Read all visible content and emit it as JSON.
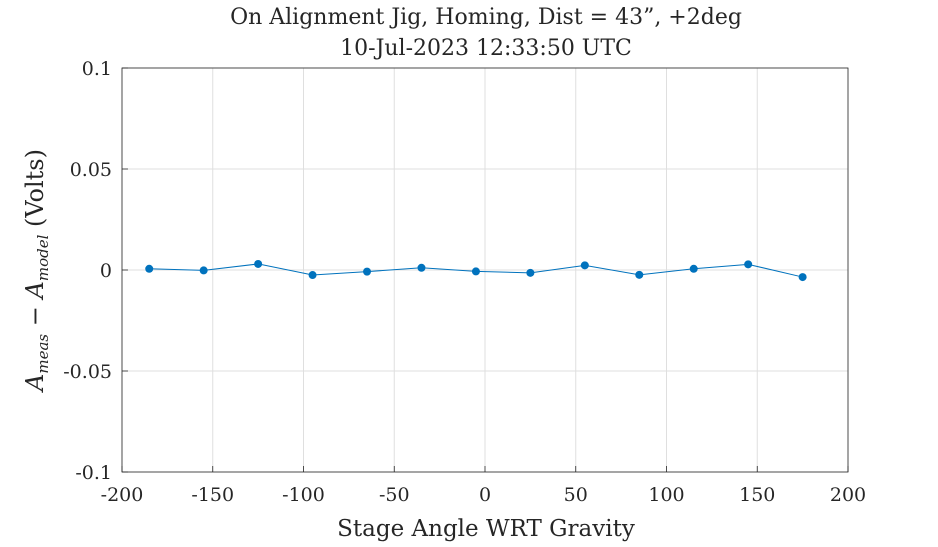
{
  "chart_data": {
    "type": "line",
    "title": "On Alignment Jig, Homing, Dist = 43”, +2deg",
    "subtitle": "10-Jul-2023 12:33:50 UTC",
    "xlabel": "Stage Angle WRT Gravity",
    "ylabel": {
      "a1": "A",
      "sub1": "meas",
      "minus": " − ",
      "a2": "A",
      "sub2": "model",
      "units": " (Volts)"
    },
    "xlim": [
      -200,
      200
    ],
    "ylim": [
      -0.1,
      0.1
    ],
    "xticks": [
      "-200",
      "-150",
      "-100",
      "-50",
      "0",
      "50",
      "100",
      "150",
      "200"
    ],
    "yticks": [
      "-0.1",
      "-0.05",
      "0",
      "0.05",
      "0.1"
    ],
    "grid": true,
    "series": [
      {
        "color": "#0072BD",
        "x": [
          -185,
          -155,
          -125,
          -95,
          -65,
          -35,
          -5,
          25,
          55,
          85,
          115,
          145,
          175
        ],
        "y": [
          0.0006,
          -0.0002,
          0.003,
          -0.0025,
          -0.0008,
          0.0011,
          -0.0007,
          -0.0014,
          0.0023,
          -0.0024,
          0.0006,
          0.0028,
          -0.0035
        ]
      }
    ]
  }
}
